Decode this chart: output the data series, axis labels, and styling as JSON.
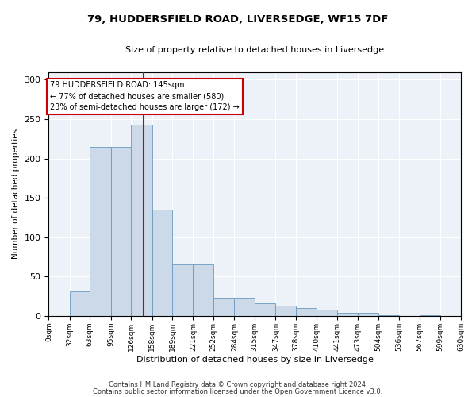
{
  "title_line1": "79, HUDDERSFIELD ROAD, LIVERSEDGE, WF15 7DF",
  "title_line2": "Size of property relative to detached houses in Liversedge",
  "xlabel": "Distribution of detached houses by size in Liversedge",
  "ylabel": "Number of detached properties",
  "bar_color": "#ccd9e8",
  "bar_edge_color": "#6a9abf",
  "vline_value": 145,
  "vline_color": "#cc0000",
  "annotation_text": "79 HUDDERSFIELD ROAD: 145sqm\n← 77% of detached houses are smaller (580)\n23% of semi-detached houses are larger (172) →",
  "annotation_box_color": "#ffffff",
  "annotation_box_edge": "#cc0000",
  "bin_edges": [
    0,
    32,
    63,
    95,
    126,
    158,
    189,
    221,
    252,
    284,
    315,
    347,
    378,
    410,
    441,
    473,
    504,
    536,
    567,
    599,
    630
  ],
  "bin_labels": [
    "0sqm",
    "32sqm",
    "63sqm",
    "95sqm",
    "126sqm",
    "158sqm",
    "189sqm",
    "221sqm",
    "252sqm",
    "284sqm",
    "315sqm",
    "347sqm",
    "378sqm",
    "410sqm",
    "441sqm",
    "473sqm",
    "504sqm",
    "536sqm",
    "567sqm",
    "599sqm",
    "630sqm"
  ],
  "bar_heights": [
    0,
    31,
    215,
    215,
    243,
    135,
    65,
    65,
    23,
    23,
    16,
    13,
    10,
    8,
    4,
    4,
    1,
    0,
    1,
    0,
    0
  ],
  "ylim": [
    0,
    310
  ],
  "yticks": [
    0,
    50,
    100,
    150,
    200,
    250,
    300
  ],
  "footer_line1": "Contains HM Land Registry data © Crown copyright and database right 2024.",
  "footer_line2": "Contains public sector information licensed under the Open Government Licence v3.0.",
  "background_color": "#edf1f8"
}
